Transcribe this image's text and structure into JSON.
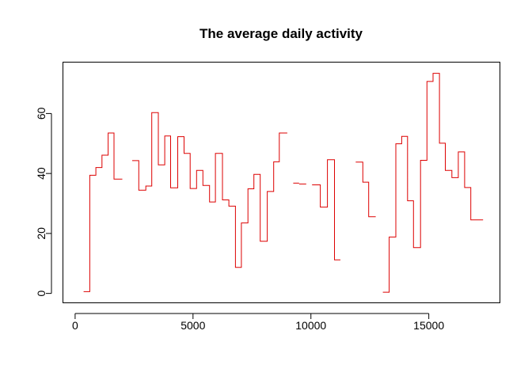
{
  "chart_data": {
    "type": "line",
    "step": true,
    "title": "The average daily activity",
    "xlabel": "",
    "ylabel": "",
    "xlim": [
      -500,
      18000
    ],
    "ylim": [
      -3,
      77
    ],
    "xticks": [
      0,
      5000,
      10000,
      15000
    ],
    "xtick_labels": [
      "0",
      "5000",
      "10000",
      "15000"
    ],
    "yticks": [
      0,
      20,
      40,
      60
    ],
    "ytick_labels": [
      "0",
      "20",
      "40",
      "60"
    ],
    "grid": false,
    "legend": "none",
    "color": "#dd0000",
    "segments": [
      {
        "x": [
          360,
          620,
          620,
          880,
          880,
          1140,
          1140,
          1400,
          1400,
          1650,
          1650,
          1910,
          1910,
          2000
        ],
        "y": [
          0.6,
          0.6,
          39.4,
          39.4,
          42,
          42,
          46.1,
          46.1,
          53.5,
          53.5,
          38.1,
          38.1,
          38.1,
          38.1
        ]
      },
      {
        "x": [
          2420,
          2700,
          2700,
          3000,
          3000,
          3250,
          3250,
          3530,
          3530,
          3800,
          3800,
          4050,
          4050,
          4350,
          4350,
          4620,
          4620,
          4880,
          4880,
          5150,
          5150,
          5420,
          5420,
          5700,
          5700,
          5950,
          5950,
          6250,
          6250,
          6520,
          6520,
          6800,
          6800,
          7050,
          7050,
          7330,
          7330,
          7580,
          7580,
          7850,
          7850,
          8150,
          8150,
          8420,
          8420,
          8660,
          8660,
          8700,
          8700,
          9000
        ],
        "y": [
          44.3,
          44.3,
          34.4,
          34.4,
          35.8,
          35.8,
          60.3,
          60.3,
          42.9,
          42.9,
          52.5,
          52.5,
          35.2,
          35.2,
          52.3,
          52.3,
          46.7,
          46.7,
          35,
          35,
          41,
          41,
          36,
          36,
          30.5,
          30.5,
          46.7,
          46.7,
          31.2,
          31.2,
          29.1,
          29.1,
          8.7,
          8.7,
          23.5,
          23.5,
          34.9,
          34.9,
          39.7,
          39.7,
          17.4,
          17.4,
          34,
          34,
          43.9,
          43.9,
          53.5,
          53.5,
          53.5,
          53.5
        ]
      },
      {
        "x": [
          9250,
          9500
        ],
        "y": [
          36.8,
          36.8
        ]
      },
      {
        "x": [
          9500,
          9800
        ],
        "y": [
          36.5,
          36.5
        ]
      },
      {
        "x": [
          10050,
          10400,
          10400,
          10700,
          10700,
          11000,
          11000,
          11250
        ],
        "y": [
          36.2,
          36.2,
          28.8,
          28.8,
          44.6,
          44.6,
          11.2,
          11.2
        ]
      },
      {
        "x": [
          11900,
          12200,
          12200,
          12450,
          12450,
          12750
        ],
        "y": [
          43.8,
          43.8,
          37.1,
          37.1,
          25.6,
          25.6
        ]
      },
      {
        "x": [
          13050,
          13320,
          13320,
          13600,
          13600,
          13850,
          13850,
          14100,
          14100,
          14350,
          14350,
          14650,
          14650,
          14920,
          14920,
          15180,
          15180,
          15450,
          15450,
          15700,
          15700,
          15980,
          15980,
          16250,
          16250,
          16520,
          16520,
          16780,
          16780,
          17050,
          17050,
          17300
        ],
        "y": [
          0.4,
          0.4,
          18.8,
          18.8,
          49.9,
          49.9,
          52.4,
          52.4,
          30.9,
          30.9,
          15.3,
          15.3,
          44.4,
          44.4,
          70.7,
          70.7,
          73.4,
          73.4,
          50.1,
          50.1,
          41,
          41,
          38.6,
          38.6,
          47.2,
          47.2,
          35.3,
          35.3,
          24.5,
          24.5,
          24.5,
          24.5
        ]
      }
    ]
  }
}
